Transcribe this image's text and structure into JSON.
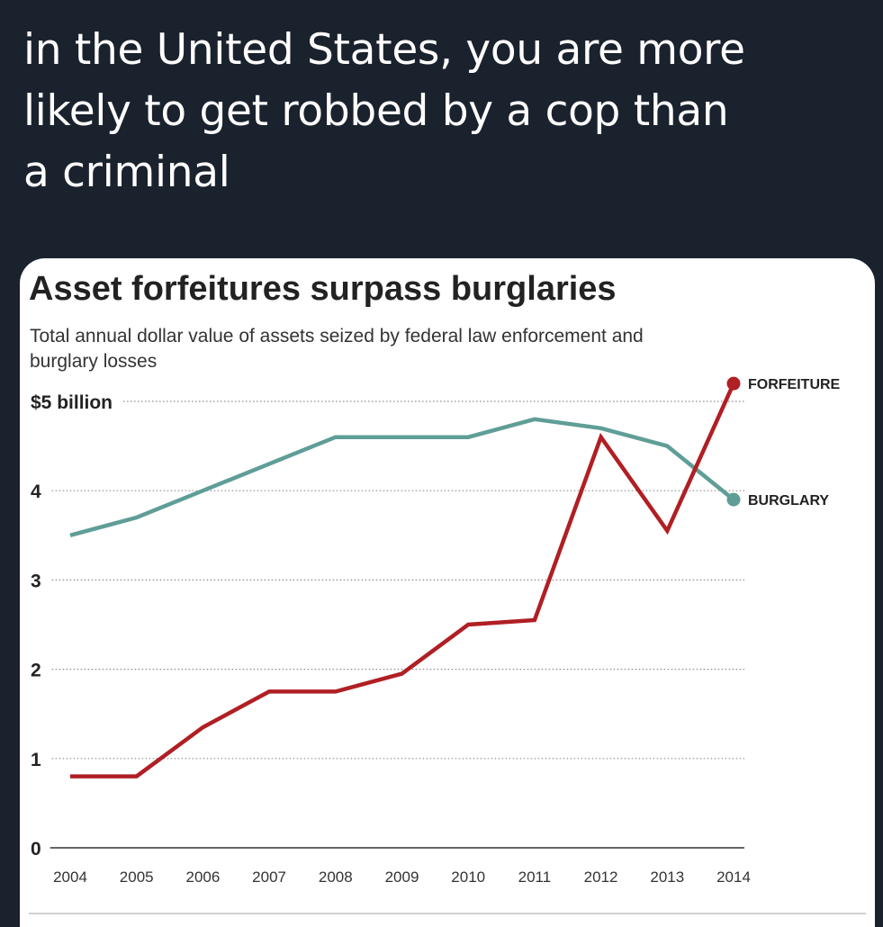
{
  "tweet": {
    "lines": [
      "in the United States, you are more",
      "likely to get robbed by a cop than",
      "a criminal"
    ]
  },
  "chart_data": {
    "type": "line",
    "title": "Asset forfeitures surpass burglaries",
    "subtitle_lines": [
      "Total annual dollar value of assets seized by federal law enforcement and",
      "burglary losses"
    ],
    "x": [
      2004,
      2005,
      2006,
      2007,
      2008,
      2009,
      2010,
      2011,
      2012,
      2013,
      2014
    ],
    "x_tick_labels": [
      "2004",
      "2005",
      "2006",
      "2007",
      "2008",
      "2009",
      "2010",
      "2011",
      "2012",
      "2013",
      "2014"
    ],
    "y_ticks": [
      {
        "value": 0,
        "label": "0"
      },
      {
        "value": 1,
        "label": "1"
      },
      {
        "value": 2,
        "label": "2"
      },
      {
        "value": 3,
        "label": "3"
      },
      {
        "value": 4,
        "label": "4"
      },
      {
        "value": 5,
        "label": "$5 billion"
      }
    ],
    "ylim": [
      0,
      5
    ],
    "grid": true,
    "series": [
      {
        "name": "FORFEITURE",
        "color": "#b01f24",
        "values": [
          0.8,
          0.8,
          1.35,
          1.75,
          1.75,
          1.95,
          2.5,
          2.55,
          4.6,
          3.55,
          5.2
        ]
      },
      {
        "name": "BURGLARY",
        "color": "#5f9e97",
        "values": [
          3.5,
          3.7,
          4.0,
          4.3,
          4.6,
          4.6,
          4.6,
          4.8,
          4.7,
          4.5,
          3.9
        ]
      }
    ]
  }
}
